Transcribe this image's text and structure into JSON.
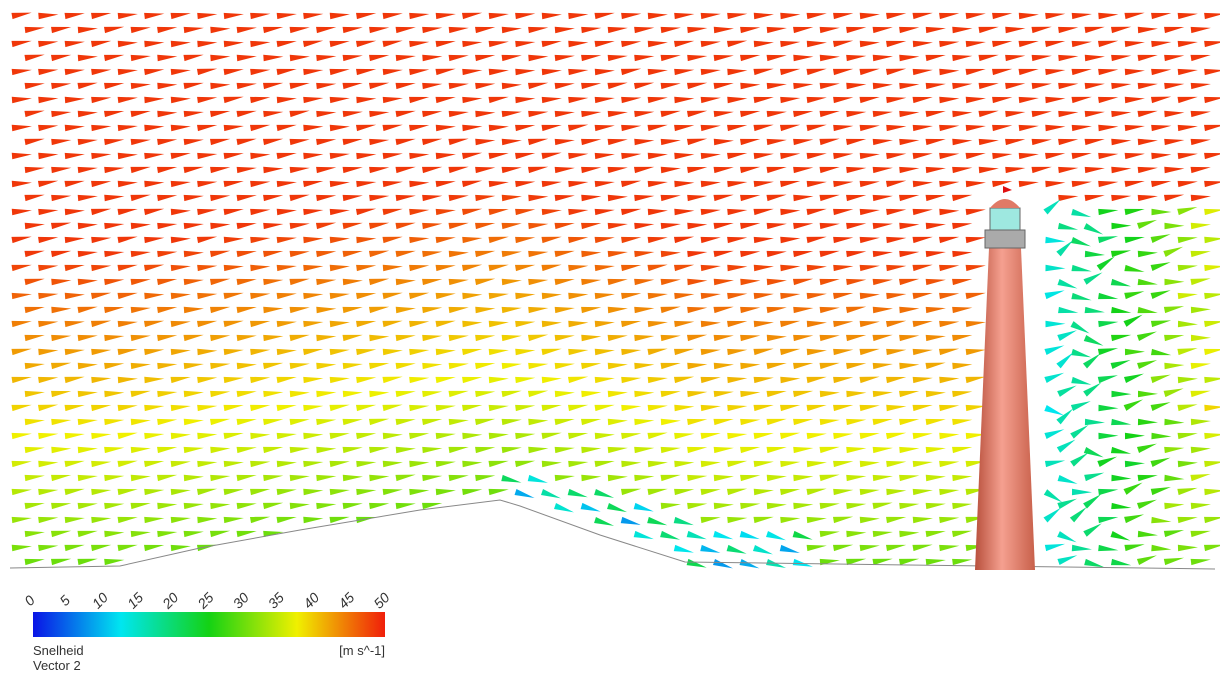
{
  "legend": {
    "ticks": [
      0,
      5,
      10,
      15,
      20,
      25,
      30,
      35,
      40,
      45,
      50
    ],
    "title": "Snelheid",
    "subtitle": "Vector 2",
    "unit": "[m s^-1]"
  }
}
